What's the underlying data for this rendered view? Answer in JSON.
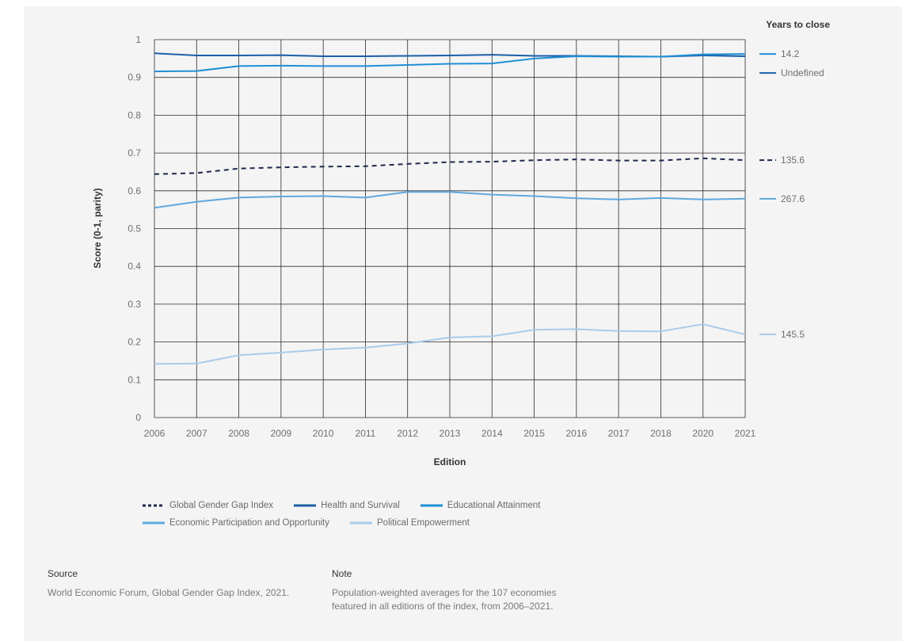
{
  "chart_data": {
    "type": "line",
    "title": "",
    "xlabel": "Edition",
    "ylabel": "Score (0-1, parity)",
    "categories": [
      "2006",
      "2007",
      "2008",
      "2009",
      "2010",
      "2011",
      "2012",
      "2013",
      "2014",
      "2015",
      "2016",
      "2017",
      "2018",
      "2020",
      "2021"
    ],
    "ylim": [
      0,
      1
    ],
    "yticks": [
      "0",
      "0.1",
      "0.2",
      "0.3",
      "0.4",
      "0.5",
      "0.6",
      "0.7",
      "0.8",
      "0.9",
      "1"
    ],
    "grid": true,
    "end_labels_title": "Years to close",
    "series": [
      {
        "name": "Global Gender Gap Index",
        "color": "#1f2a4d",
        "dashed": true,
        "years_to_close": "135.6",
        "values": [
          0.644,
          0.647,
          0.659,
          0.662,
          0.664,
          0.665,
          0.671,
          0.676,
          0.677,
          0.681,
          0.683,
          0.68,
          0.68,
          0.686,
          0.681
        ]
      },
      {
        "name": "Health and Survival",
        "color": "#1b5ea8",
        "dashed": false,
        "years_to_close": "Undefined",
        "values": [
          0.964,
          0.958,
          0.958,
          0.959,
          0.956,
          0.956,
          0.957,
          0.958,
          0.96,
          0.957,
          0.957,
          0.956,
          0.955,
          0.958,
          0.956
        ]
      },
      {
        "name": "Educational Attainment",
        "color": "#1f8fd6",
        "dashed": false,
        "years_to_close": "14.2",
        "values": [
          0.916,
          0.917,
          0.93,
          0.931,
          0.93,
          0.93,
          0.933,
          0.936,
          0.937,
          0.95,
          0.956,
          0.955,
          0.955,
          0.961,
          0.962
        ]
      },
      {
        "name": "Economic Participation and Opportunity",
        "color": "#5fa8de",
        "dashed": false,
        "years_to_close": "267.6",
        "values": [
          0.555,
          0.571,
          0.582,
          0.585,
          0.586,
          0.582,
          0.597,
          0.597,
          0.59,
          0.586,
          0.58,
          0.577,
          0.581,
          0.577,
          0.579
        ]
      },
      {
        "name": "Political Empowerment",
        "color": "#a9cbea",
        "dashed": false,
        "years_to_close": "145.5",
        "values": [
          0.142,
          0.143,
          0.165,
          0.172,
          0.18,
          0.185,
          0.196,
          0.212,
          0.215,
          0.232,
          0.234,
          0.229,
          0.228,
          0.247,
          0.22
        ]
      }
    ],
    "legend_position": "bottom"
  },
  "footer": {
    "source_title": "Source",
    "source_text": "World Economic Forum, Global Gender Gap Index, 2021.",
    "note_title": "Note",
    "note_text": "Population-weighted averages for the 107 economies featured in all editions of the index, from 2006–2021."
  }
}
